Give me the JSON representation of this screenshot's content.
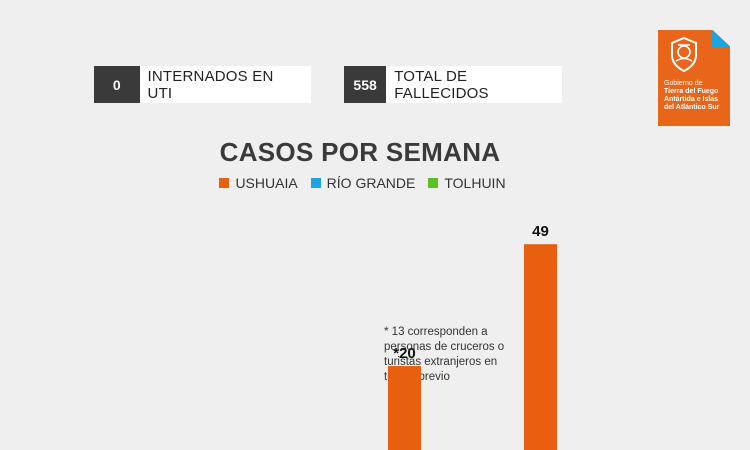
{
  "stats": [
    {
      "value": "0",
      "label": "INTERNADOS EN UTI"
    },
    {
      "value": "558",
      "label": "TOTAL DE FALLECIDOS"
    }
  ],
  "logo": {
    "line1": "Gobierno de",
    "line2": "Tierra del Fuego",
    "line3": "Antártida e Islas",
    "line4": "del Atlántico Sur"
  },
  "note": "* 13 corresponden a personas de cruceros o turistas extranjeros en testeo previo",
  "colors": {
    "ushuaia": "#e8600f",
    "rio_grande": "#1aa5e0",
    "tolhuin": "#5cbf24",
    "brand": "#e8651a"
  },
  "chart_data": {
    "type": "bar",
    "title": "CASOS POR SEMANA",
    "legend": [
      "USHUAIA",
      "RÍO GRANDE",
      "TOLHUIN"
    ],
    "legend_placement": "top",
    "grid": false,
    "categories": [
      "",
      ""
    ],
    "series": [
      {
        "name": "USHUAIA",
        "values": [
          20,
          49
        ],
        "labels": [
          "*20",
          "49"
        ]
      }
    ],
    "ylim": [
      0,
      54
    ]
  }
}
